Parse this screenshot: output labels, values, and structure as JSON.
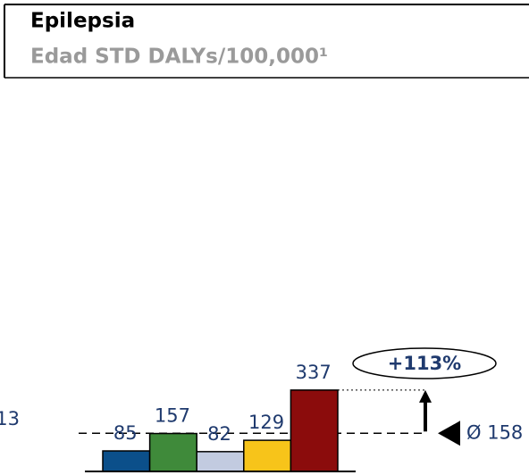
{
  "chart_data": {
    "type": "bar",
    "title": "Epilepsia",
    "subtitle": "Edad STD DALYs/100,000¹",
    "categories": [
      null,
      null,
      null,
      null,
      null
    ],
    "values": [
      85,
      157,
      82,
      129,
      337
    ],
    "colors": [
      "#0b4f8a",
      "#3f8a3a",
      "#c2cbe0",
      "#f7c41a",
      "#8b0c0c"
    ],
    "ylim": [
      0,
      1620
    ],
    "average": {
      "value": 158,
      "label": "Ø 158"
    },
    "annotation": "+113%",
    "side_label": "13"
  }
}
